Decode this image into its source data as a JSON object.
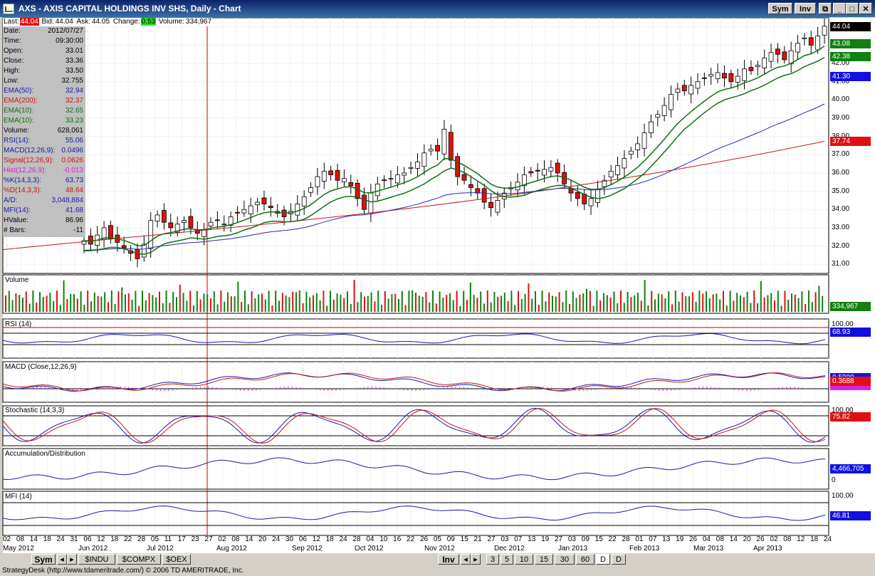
{
  "window": {
    "title": "AXS - AXIS CAPITAL HOLDINGS INV SHS, Daily - Chart",
    "sym_button": "Sym",
    "inv_button": "Inv"
  },
  "quote": {
    "last_label": "Last:",
    "last": "44.04",
    "bid_label": "Bid:",
    "bid": "44.04",
    "ask_label": "Ask:",
    "ask": "44.05",
    "change_label": "Change:",
    "change": "0.53",
    "volume_label": "Volume:",
    "volume": "334,967"
  },
  "info": [
    {
      "k": "Date:",
      "v": "2012/07/27",
      "color": "#000000"
    },
    {
      "k": "Time:",
      "v": "09:30:00",
      "color": "#000000"
    },
    {
      "k": "Open:",
      "v": "33.01",
      "color": "#000000"
    },
    {
      "k": "Close:",
      "v": "33.36",
      "color": "#000000"
    },
    {
      "k": "High:",
      "v": "33.50",
      "color": "#000000"
    },
    {
      "k": "Low:",
      "v": "32.755",
      "color": "#000000"
    },
    {
      "k": "EMA(50):",
      "v": "32.94",
      "color": "#1a1aa8"
    },
    {
      "k": "EMA(200):",
      "v": "32.37",
      "color": "#c81414"
    },
    {
      "k": "EMA(10):",
      "v": "32.65",
      "color": "#107010"
    },
    {
      "k": "EMA(10):",
      "v": "33.23",
      "color": "#107010"
    },
    {
      "k": "Volume:",
      "v": "628,061",
      "color": "#000000"
    },
    {
      "k": "RSI(14):",
      "v": "55.06",
      "color": "#1a1aa8"
    },
    {
      "k": "MACD(12,26,9):",
      "v": "0.0496",
      "color": "#1a1aa8"
    },
    {
      "k": "Signal(12,26,9):",
      "v": "0.0626",
      "color": "#c81414"
    },
    {
      "k": "Hist(12,26,9):",
      "v": "-0.013",
      "color": "#d020d0"
    },
    {
      "k": "%K(14,3,3):",
      "v": "63.73",
      "color": "#1a1aa8"
    },
    {
      "k": "%D(14,3,3):",
      "v": "48.64",
      "color": "#c81414"
    },
    {
      "k": "A/D:",
      "v": "3,048,884",
      "color": "#1a1aa8"
    },
    {
      "k": "MFI(14):",
      "v": "41.68",
      "color": "#1a1aa8"
    },
    {
      "k": "HValue:",
      "v": "86.96",
      "color": "#000000"
    },
    {
      "k": "# Bars:",
      "v": "-11",
      "color": "#000000"
    }
  ],
  "panels": {
    "volume": "Volume",
    "rsi": "RSI (14)",
    "macd": "MACD (Close,12,26,9)",
    "stoch": "Stochastic (14,3,3)",
    "ad": "Accumulation/Distribution",
    "mfi": "MFI (14)"
  },
  "price_axis": [
    "44.00",
    "43.00",
    "42.00",
    "41.00",
    "40.00",
    "39.00",
    "38.00",
    "37.00",
    "36.00",
    "35.00",
    "34.00",
    "33.00",
    "32.00",
    "31.00"
  ],
  "price_tags": [
    {
      "v": "44.04",
      "bg": "#000000",
      "fg": "#ffffff"
    },
    {
      "v": "43.08",
      "bg": "#108010",
      "fg": "#ffffff"
    },
    {
      "v": "42.38",
      "bg": "#108010",
      "fg": "#ffffff"
    },
    {
      "v": "41.30",
      "bg": "#1010e0",
      "fg": "#ffffff"
    },
    {
      "v": "37.74",
      "bg": "#e01010",
      "fg": "#ffffff"
    }
  ],
  "indicator_tags": {
    "volume": "334,967",
    "rsi_hi": "100.00",
    "rsi": "68.93",
    "macd_a": "0.5000",
    "macd_b": "0.3688",
    "stoch_hi": "100.00",
    "stoch": "75.82",
    "ad": "4,466,705",
    "ad_zero": "0",
    "mfi_hi": "100.00",
    "mfi": "46.81"
  },
  "date_ticks": [
    "02",
    "08",
    "14",
    "18",
    "24",
    "31",
    "06",
    "12",
    "18",
    "22",
    "28",
    "05",
    "11",
    "17",
    "23",
    "27",
    "02",
    "08",
    "14",
    "20",
    "24",
    "30",
    "06",
    "12",
    "18",
    "24",
    "28",
    "04",
    "10",
    "16",
    "22",
    "26",
    "05",
    "09",
    "15",
    "21",
    "27",
    "03",
    "07",
    "13",
    "19",
    "27",
    "03",
    "09",
    "15",
    "22",
    "28",
    "01",
    "07",
    "13",
    "19",
    "26",
    "04",
    "08",
    "14",
    "20",
    "26",
    "02",
    "08",
    "12",
    "18",
    "24"
  ],
  "months": [
    "May 2012",
    "Jun 2012",
    "Jul 2012",
    "Aug 2012",
    "Sep 2012",
    "Oct 2012",
    "Nov 2012",
    "Dec 2012",
    "Jan 2013",
    "Feb 2013",
    "Mar 2013",
    "Apr 2013"
  ],
  "tabs": {
    "sym": "Sym",
    "symbols": [
      "$INDU",
      "$COMPX",
      "$OEX"
    ],
    "inv": "Inv",
    "intervals": [
      "3",
      "5",
      "10",
      "15",
      "30",
      "60",
      "D",
      "D"
    ]
  },
  "status": "StrategyDesk (http://www.tdameritrade.com/) © 2006 TD AMERITRADE, Inc.",
  "chart_data": {
    "type": "candlestick",
    "title": "AXS - AXIS CAPITAL HOLDINGS INV SHS, Daily",
    "ylim": [
      30.5,
      44.5
    ],
    "x_range": [
      "2012-05-02",
      "2013-04-26"
    ],
    "series_close": [
      32.3,
      32.1,
      32.6,
      33.0,
      32.4,
      32.2,
      31.9,
      31.6,
      31.3,
      32.1,
      33.4,
      33.7,
      33.3,
      33.0,
      33.2,
      33.4,
      33.0,
      32.7,
      32.9,
      33.3,
      33.4,
      33.2,
      33.6,
      33.8,
      34.0,
      34.2,
      34.4,
      34.3,
      34.1,
      33.8,
      33.6,
      33.9,
      34.3,
      34.7,
      35.2,
      35.8,
      36.1,
      35.9,
      35.6,
      35.7,
      35.3,
      34.6,
      34.0,
      34.9,
      35.4,
      35.6,
      35.7,
      35.9,
      36.0,
      36.3,
      36.6,
      37.1,
      37.3,
      37.2,
      38.4,
      36.7,
      35.8,
      35.6,
      35.2,
      34.9,
      34.4,
      34.1,
      34.5,
      34.9,
      35.2,
      35.5,
      35.9,
      36.0,
      36.1,
      36.2,
      36.3,
      36.0,
      35.4,
      34.9,
      34.6,
      34.3,
      34.6,
      35.1,
      35.6,
      36.1,
      36.4,
      36.8,
      37.2,
      37.6,
      38.2,
      38.8,
      39.2,
      39.7,
      40.3,
      40.6,
      40.5,
      40.8,
      41.0,
      41.2,
      41.4,
      41.5,
      41.2,
      41.0,
      41.3,
      41.7,
      41.6,
      41.9,
      42.3,
      42.6,
      42.5,
      42.2,
      42.7,
      43.1,
      43.4,
      43.0,
      43.5,
      44.04
    ]
  }
}
